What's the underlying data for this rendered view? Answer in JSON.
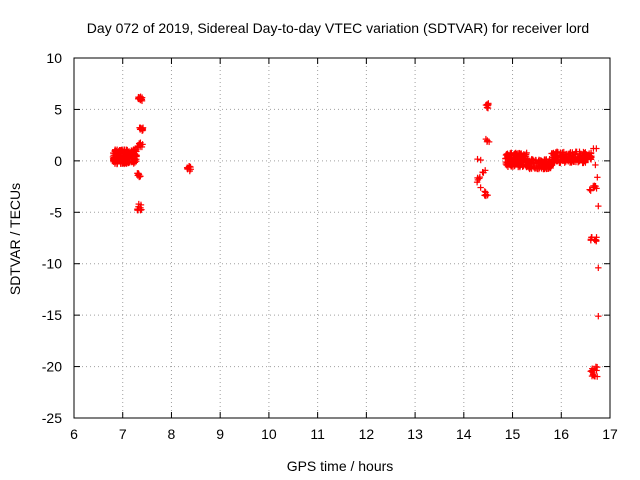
{
  "chart_data": {
    "type": "scatter",
    "title": "Day 072 of 2019, Sidereal Day-to-day VTEC variation (SDTVAR) for receiver lord",
    "xlabel": "GPS time / hours",
    "ylabel": "SDTVAR / TECUs",
    "xlim": [
      6,
      17
    ],
    "ylim": [
      -25,
      10
    ],
    "xticks": [
      6,
      7,
      8,
      9,
      10,
      11,
      12,
      13,
      14,
      15,
      16,
      17
    ],
    "yticks": [
      10,
      5,
      0,
      -5,
      -10,
      -15,
      -20,
      -25
    ],
    "grid": true,
    "marker": "plus",
    "color": "#ff0000",
    "clusters": [
      {
        "x": [
          6.8,
          7.3
        ],
        "y": [
          -0.3,
          1.1
        ],
        "n": 180
      },
      {
        "x": [
          7.3,
          7.42
        ],
        "y": [
          1.2,
          1.8
        ],
        "n": 14
      },
      {
        "x": [
          7.32,
          7.42
        ],
        "y": [
          5.8,
          6.3
        ],
        "n": 14
      },
      {
        "x": [
          7.33,
          7.42
        ],
        "y": [
          2.9,
          3.3
        ],
        "n": 10
      },
      {
        "x": [
          7.3,
          7.4
        ],
        "y": [
          -1.6,
          -1.2
        ],
        "n": 8
      },
      {
        "x": [
          7.3,
          7.4
        ],
        "y": [
          -4.8,
          -4.2
        ],
        "n": 10
      },
      {
        "x": [
          8.32,
          8.4
        ],
        "y": [
          -1.0,
          -0.4
        ],
        "n": 10
      },
      {
        "x": [
          14.25,
          14.35
        ],
        "y": [
          -2.6,
          0.4
        ],
        "n": 8
      },
      {
        "x": [
          14.42,
          14.52
        ],
        "y": [
          5.0,
          5.6
        ],
        "n": 8
      },
      {
        "x": [
          14.45,
          14.52
        ],
        "y": [
          1.8,
          2.2
        ],
        "n": 4
      },
      {
        "x": [
          14.42,
          14.52
        ],
        "y": [
          -3.5,
          -2.6
        ],
        "n": 8
      },
      {
        "x": [
          14.38,
          14.45
        ],
        "y": [
          -1.4,
          -0.9
        ],
        "n": 3
      },
      {
        "x": [
          14.85,
          15.3
        ],
        "y": [
          -0.6,
          0.8
        ],
        "n": 140
      },
      {
        "x": [
          15.3,
          15.8
        ],
        "y": [
          -0.8,
          0.2
        ],
        "n": 120
      },
      {
        "x": [
          15.8,
          16.5
        ],
        "y": [
          -0.2,
          0.9
        ],
        "n": 150
      },
      {
        "x": [
          16.5,
          16.62
        ],
        "y": [
          0.1,
          0.8
        ],
        "n": 20
      },
      {
        "x": [
          16.55,
          16.75
        ],
        "y": [
          -2.9,
          -2.3
        ],
        "n": 8
      },
      {
        "x": [
          16.6,
          16.75
        ],
        "y": [
          -7.9,
          -7.3
        ],
        "n": 10
      },
      {
        "x": [
          16.6,
          16.75
        ],
        "y": [
          -21.0,
          -20.0
        ],
        "n": 14
      }
    ],
    "points": [
      {
        "x": 16.72,
        "y": 1.2
      },
      {
        "x": 16.66,
        "y": 1.2
      },
      {
        "x": 16.7,
        "y": -0.4
      },
      {
        "x": 16.74,
        "y": -1.6
      },
      {
        "x": 16.76,
        "y": -4.4
      },
      {
        "x": 16.76,
        "y": -10.4
      },
      {
        "x": 16.76,
        "y": -15.1
      }
    ]
  }
}
